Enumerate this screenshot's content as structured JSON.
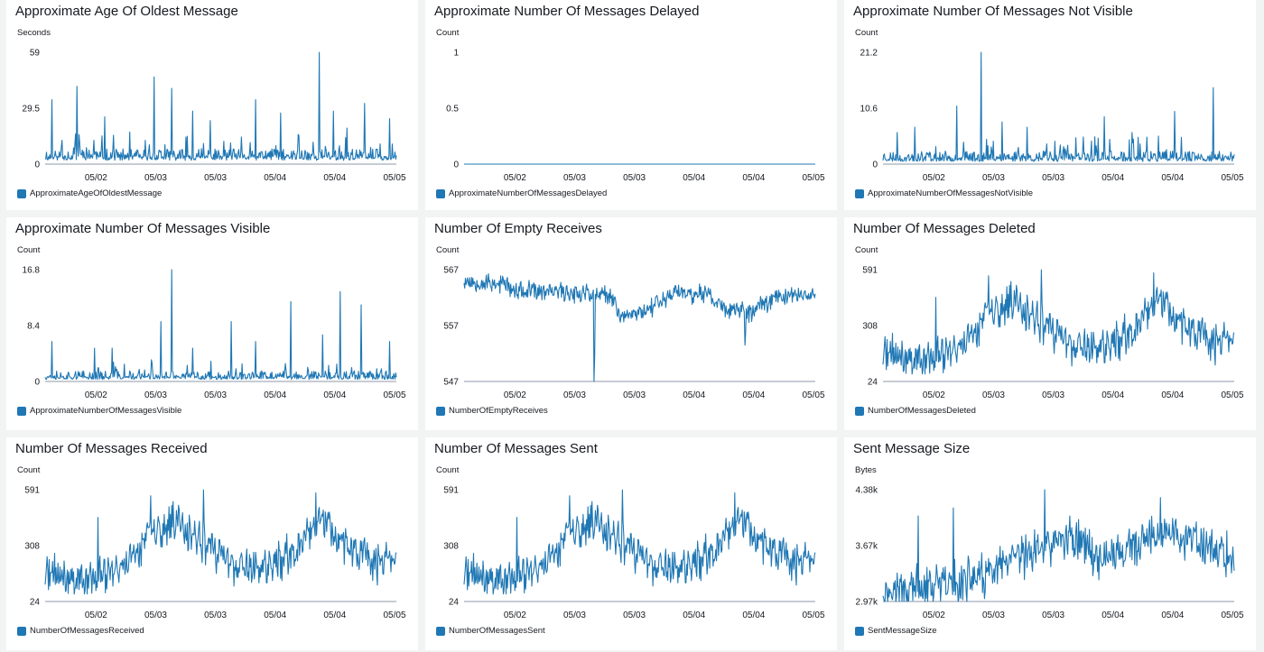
{
  "dashboard": {
    "panels": [
      {
        "title": "Approximate Age Of Oldest Message",
        "unit": "Seconds",
        "legend": "ApproximateAgeOfOldestMessage",
        "chart_data": {
          "type": "line",
          "series": [
            {
              "name": "ApproximateAgeOfOldestMessage"
            }
          ],
          "y_ticks": [
            "0",
            "29.5",
            "59"
          ],
          "ylim": [
            0,
            59
          ],
          "x_ticks": [
            "05/02",
            "05/03",
            "05/03",
            "05/04",
            "05/04",
            "05/05"
          ],
          "profile": {
            "base": 2,
            "noise": 6,
            "spikes": [
              [
                0.02,
                34
              ],
              [
                0.09,
                41
              ],
              [
                0.17,
                25
              ],
              [
                0.24,
                17
              ],
              [
                0.31,
                46
              ],
              [
                0.36,
                40
              ],
              [
                0.42,
                28
              ],
              [
                0.47,
                23
              ],
              [
                0.6,
                34
              ],
              [
                0.67,
                27
              ],
              [
                0.78,
                59
              ],
              [
                0.82,
                28
              ],
              [
                0.86,
                19
              ],
              [
                0.91,
                32
              ],
              [
                0.98,
                24
              ]
            ],
            "spikeCount": 60,
            "spikeMax": 14,
            "seed": 11
          }
        }
      },
      {
        "title": "Approximate Number Of Messages Delayed",
        "unit": "Count",
        "legend": "ApproximateNumberOfMessagesDelayed",
        "chart_data": {
          "type": "line",
          "series": [
            {
              "name": "ApproximateNumberOfMessagesDelayed",
              "values": [
                0
              ]
            }
          ],
          "y_ticks": [
            "0",
            "0.5",
            "1"
          ],
          "ylim": [
            0,
            1
          ],
          "x_ticks": [
            "05/02",
            "05/03",
            "05/03",
            "05/04",
            "05/04",
            "05/05"
          ],
          "profile": {
            "base": 0,
            "noise": 0,
            "spikes": [],
            "spikeCount": 0,
            "spikeMax": 0,
            "seed": 2
          }
        }
      },
      {
        "title": "Approximate Number Of Messages Not Visible",
        "unit": "Count",
        "legend": "ApproximateNumberOfMessagesNotVisible",
        "chart_data": {
          "type": "line",
          "series": [
            {
              "name": "ApproximateNumberOfMessagesNotVisible"
            }
          ],
          "y_ticks": [
            "0",
            "10.6",
            "21.2"
          ],
          "ylim": [
            0,
            21.2
          ],
          "x_ticks": [
            "05/02",
            "05/03",
            "05/03",
            "05/04",
            "05/04",
            "05/05"
          ],
          "profile": {
            "base": 0.5,
            "noise": 2,
            "spikes": [
              [
                0.04,
                6
              ],
              [
                0.09,
                7
              ],
              [
                0.21,
                11
              ],
              [
                0.28,
                21.2
              ],
              [
                0.34,
                8
              ],
              [
                0.41,
                7
              ],
              [
                0.55,
                5
              ],
              [
                0.63,
                9
              ],
              [
                0.71,
                6
              ],
              [
                0.83,
                10
              ],
              [
                0.94,
                14.5
              ]
            ],
            "spikeCount": 45,
            "spikeMax": 5,
            "seed": 23
          }
        }
      },
      {
        "title": "Approximate Number Of Messages Visible",
        "unit": "Count",
        "legend": "ApproximateNumberOfMessagesVisible",
        "chart_data": {
          "type": "line",
          "series": [
            {
              "name": "ApproximateNumberOfMessagesVisible"
            }
          ],
          "y_ticks": [
            "0",
            "8.4",
            "16.8"
          ],
          "ylim": [
            0,
            16.8
          ],
          "x_ticks": [
            "05/02",
            "05/03",
            "05/03",
            "05/04",
            "05/04",
            "05/05"
          ],
          "profile": {
            "base": 0.3,
            "noise": 1.3,
            "spikes": [
              [
                0.02,
                6
              ],
              [
                0.14,
                5
              ],
              [
                0.19,
                5
              ],
              [
                0.33,
                9
              ],
              [
                0.36,
                16.8
              ],
              [
                0.42,
                5
              ],
              [
                0.53,
                9
              ],
              [
                0.6,
                6
              ],
              [
                0.7,
                12
              ],
              [
                0.79,
                7
              ],
              [
                0.84,
                13.5
              ],
              [
                0.9,
                11.5
              ],
              [
                0.98,
                6
              ]
            ],
            "spikeCount": 40,
            "spikeMax": 3,
            "seed": 37
          }
        }
      },
      {
        "title": "Number Of Empty Receives",
        "unit": "Count",
        "legend": "NumberOfEmptyReceives",
        "chart_data": {
          "type": "line",
          "series": [
            {
              "name": "NumberOfEmptyReceives"
            }
          ],
          "y_ticks": [
            "547",
            "557",
            "567"
          ],
          "ylim": [
            547,
            567
          ],
          "x_ticks": [
            "05/02",
            "05/03",
            "05/03",
            "05/04",
            "05/04",
            "05/05"
          ],
          "profile": {
            "level": [
              [
                0,
                565
              ],
              [
                0.12,
                564.5
              ],
              [
                0.14,
                563
              ],
              [
                0.35,
                563
              ],
              [
                0.42,
                562
              ],
              [
                0.45,
                558.5
              ],
              [
                0.52,
                560
              ],
              [
                0.6,
                563
              ],
              [
                0.7,
                562.5
              ],
              [
                0.74,
                560
              ],
              [
                0.82,
                559.5
              ],
              [
                0.88,
                562
              ],
              [
                1,
                563
              ]
            ],
            "noise": 2.2,
            "drops": [
              [
                0.37,
                547
              ],
              [
                0.8,
                553.5
              ]
            ],
            "seed": 53
          }
        }
      },
      {
        "title": "Number Of Messages Deleted",
        "unit": "Count",
        "legend": "NumberOfMessagesDeleted",
        "chart_data": {
          "type": "line",
          "series": [
            {
              "name": "NumberOfMessagesDeleted"
            }
          ],
          "y_ticks": [
            "24",
            "308",
            "591"
          ],
          "ylim": [
            24,
            591
          ],
          "x_ticks": [
            "05/02",
            "05/03",
            "05/03",
            "05/04",
            "05/04",
            "05/05"
          ],
          "profile": {
            "level": [
              [
                0,
                160
              ],
              [
                0.12,
                130
              ],
              [
                0.22,
                190
              ],
              [
                0.3,
                370
              ],
              [
                0.38,
                420
              ],
              [
                0.46,
                300
              ],
              [
                0.54,
                200
              ],
              [
                0.64,
                180
              ],
              [
                0.72,
                300
              ],
              [
                0.78,
                450
              ],
              [
                0.84,
                340
              ],
              [
                0.92,
                230
              ],
              [
                1,
                210
              ]
            ],
            "noise": 130,
            "spikes": [
              [
                0.15,
                450
              ],
              [
                0.3,
                560
              ],
              [
                0.45,
                590
              ],
              [
                0.77,
                575
              ]
            ],
            "seed": 71
          }
        }
      },
      {
        "title": "Number Of Messages Received",
        "unit": "Count",
        "legend": "NumberOfMessagesReceived",
        "chart_data": {
          "type": "line",
          "series": [
            {
              "name": "NumberOfMessagesReceived"
            }
          ],
          "y_ticks": [
            "24",
            "308",
            "591"
          ],
          "ylim": [
            24,
            591
          ],
          "x_ticks": [
            "05/02",
            "05/03",
            "05/03",
            "05/04",
            "05/04",
            "05/05"
          ],
          "profile": {
            "level": [
              [
                0,
                160
              ],
              [
                0.12,
                130
              ],
              [
                0.22,
                190
              ],
              [
                0.3,
                370
              ],
              [
                0.38,
                420
              ],
              [
                0.46,
                300
              ],
              [
                0.54,
                200
              ],
              [
                0.64,
                180
              ],
              [
                0.72,
                300
              ],
              [
                0.78,
                450
              ],
              [
                0.84,
                340
              ],
              [
                0.92,
                230
              ],
              [
                1,
                210
              ]
            ],
            "noise": 130,
            "spikes": [
              [
                0.15,
                450
              ],
              [
                0.3,
                560
              ],
              [
                0.45,
                590
              ],
              [
                0.77,
                575
              ]
            ],
            "seed": 71
          }
        }
      },
      {
        "title": "Number Of Messages Sent",
        "unit": "Count",
        "legend": "NumberOfMessagesSent",
        "chart_data": {
          "type": "line",
          "series": [
            {
              "name": "NumberOfMessagesSent"
            }
          ],
          "y_ticks": [
            "24",
            "308",
            "591"
          ],
          "ylim": [
            24,
            591
          ],
          "x_ticks": [
            "05/02",
            "05/03",
            "05/03",
            "05/04",
            "05/04",
            "05/05"
          ],
          "profile": {
            "level": [
              [
                0,
                160
              ],
              [
                0.12,
                130
              ],
              [
                0.22,
                190
              ],
              [
                0.3,
                370
              ],
              [
                0.38,
                420
              ],
              [
                0.46,
                300
              ],
              [
                0.54,
                200
              ],
              [
                0.64,
                180
              ],
              [
                0.72,
                300
              ],
              [
                0.78,
                450
              ],
              [
                0.84,
                340
              ],
              [
                0.92,
                230
              ],
              [
                1,
                210
              ]
            ],
            "noise": 130,
            "spikes": [
              [
                0.15,
                450
              ],
              [
                0.3,
                560
              ],
              [
                0.45,
                590
              ],
              [
                0.77,
                575
              ]
            ],
            "seed": 71
          }
        }
      },
      {
        "title": "Sent Message Size",
        "unit": "Bytes",
        "legend": "SentMessageSize",
        "chart_data": {
          "type": "line",
          "series": [
            {
              "name": "SentMessageSize"
            }
          ],
          "y_ticks": [
            "2.97k",
            "3.67k",
            "4.38k"
          ],
          "ylim": [
            2970,
            4380
          ],
          "x_ticks": [
            "05/02",
            "05/03",
            "05/03",
            "05/04",
            "05/04",
            "05/05"
          ],
          "profile": {
            "level": [
              [
                0,
                3100
              ],
              [
                0.15,
                3150
              ],
              [
                0.3,
                3300
              ],
              [
                0.45,
                3650
              ],
              [
                0.55,
                3800
              ],
              [
                0.62,
                3500
              ],
              [
                0.72,
                3650
              ],
              [
                0.8,
                3850
              ],
              [
                0.9,
                3700
              ],
              [
                1,
                3500
              ]
            ],
            "noise": 330,
            "spikes": [
              [
                0.1,
                4050
              ],
              [
                0.2,
                4150
              ],
              [
                0.46,
                4380
              ],
              [
                0.79,
                4280
              ]
            ],
            "seed": 97
          }
        }
      }
    ]
  }
}
